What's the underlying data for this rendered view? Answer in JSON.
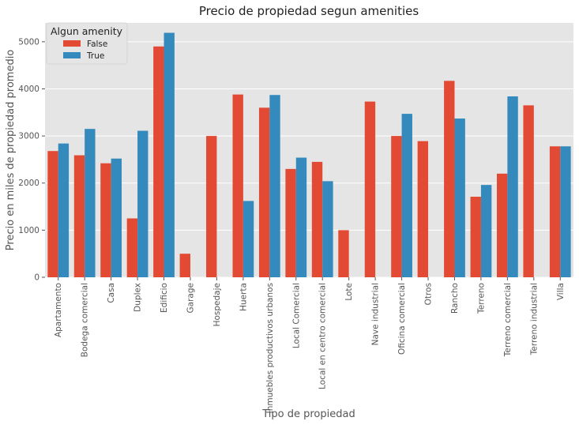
{
  "chart_data": {
    "type": "bar",
    "title": "Precio de propiedad segun amenities",
    "xlabel": "Tipo de propiedad",
    "ylabel": "Precio en miles de propiedad promedio",
    "ylim": [
      0,
      5400
    ],
    "yticks": [
      0,
      1000,
      2000,
      3000,
      4000,
      5000
    ],
    "grid": true,
    "legend": {
      "title": "Algun amenity",
      "placement": "top-left"
    },
    "categories": [
      "Apartamento",
      "Bodega comercial",
      "Casa",
      "Duplex",
      "Edificio",
      "Garage",
      "Hospedaje",
      "Huerta",
      "Inmuebles productivos urbanos",
      "Local Comercial",
      "Local en centro comercial",
      "Lote",
      "Nave industrial",
      "Oficina comercial",
      "Otros",
      "Rancho",
      "Terreno",
      "Terreno comercial",
      "Terreno industrial",
      "Villa"
    ],
    "series": [
      {
        "name": "False",
        "color": "#E24A33",
        "values": [
          2680,
          2590,
          2420,
          1250,
          4900,
          500,
          3000,
          3880,
          3600,
          2300,
          2450,
          1000,
          3730,
          3000,
          2890,
          4170,
          1710,
          2200,
          3650,
          2780
        ]
      },
      {
        "name": "True",
        "color": "#348ABD",
        "values": [
          2840,
          3150,
          2520,
          3110,
          5190,
          null,
          null,
          1620,
          3870,
          2540,
          2040,
          null,
          null,
          3470,
          null,
          3370,
          1960,
          3840,
          null,
          2780
        ]
      }
    ]
  }
}
